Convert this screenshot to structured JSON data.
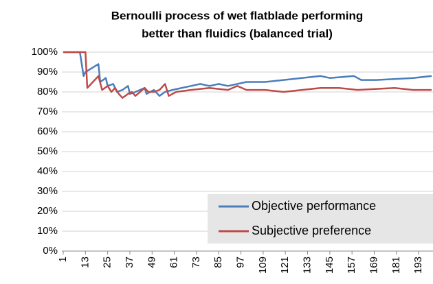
{
  "chart_data": {
    "type": "line",
    "title": [
      "Bernoulli process of wet flatblade performing",
      "better than fluidics (balanced trial)"
    ],
    "series": [
      {
        "name": "Objective performance",
        "color": "#4a7ebb",
        "x": [
          1,
          10,
          12,
          13,
          20,
          21,
          24,
          25,
          28,
          30,
          33,
          36,
          37,
          40,
          45,
          46,
          50,
          51,
          53,
          56,
          60,
          70,
          75,
          80,
          85,
          90,
          100,
          110,
          120,
          140,
          145,
          158,
          162,
          170,
          190,
          200
        ],
        "values": [
          100,
          100,
          88,
          90,
          94,
          85,
          87,
          83,
          84,
          80,
          81,
          83,
          79,
          80,
          82,
          79,
          81,
          80,
          78,
          80,
          81,
          83,
          84,
          83,
          84,
          83,
          85,
          85,
          86,
          88,
          87,
          88,
          86,
          86,
          87,
          88
        ]
      },
      {
        "name": "Subjective preference",
        "color": "#be4b48",
        "x": [
          1,
          13,
          14,
          18,
          20,
          22,
          25,
          27,
          29,
          31,
          33,
          36,
          38,
          40,
          45,
          47,
          50,
          53,
          56,
          58,
          62,
          70,
          80,
          90,
          95,
          100,
          110,
          120,
          140,
          150,
          160,
          180,
          190,
          200
        ],
        "values": [
          100,
          100,
          82,
          86,
          88,
          81,
          83,
          80,
          82,
          79,
          77,
          79,
          80,
          78,
          82,
          80,
          80,
          81,
          84,
          78,
          80,
          81,
          82,
          81,
          83,
          81,
          81,
          80,
          82,
          82,
          81,
          82,
          81,
          81
        ]
      }
    ],
    "xlim": [
      1,
      200
    ],
    "xticks": [
      1,
      13,
      25,
      37,
      49,
      61,
      73,
      85,
      97,
      109,
      121,
      133,
      145,
      157,
      169,
      181,
      193
    ],
    "ylim": [
      0,
      100
    ],
    "yticks": [
      {
        "value": 0,
        "label": "0%"
      },
      {
        "value": 10,
        "label": "10%"
      },
      {
        "value": 20,
        "label": "20%"
      },
      {
        "value": 30,
        "label": "30%"
      },
      {
        "value": 40,
        "label": "40%"
      },
      {
        "value": 50,
        "label": "50%"
      },
      {
        "value": 60,
        "label": "60%"
      },
      {
        "value": 70,
        "label": "70%"
      },
      {
        "value": 80,
        "label": "80%"
      },
      {
        "value": 90,
        "label": "90%"
      },
      {
        "value": 100,
        "label": "100%"
      }
    ],
    "grid": true,
    "legend": "lower right"
  }
}
